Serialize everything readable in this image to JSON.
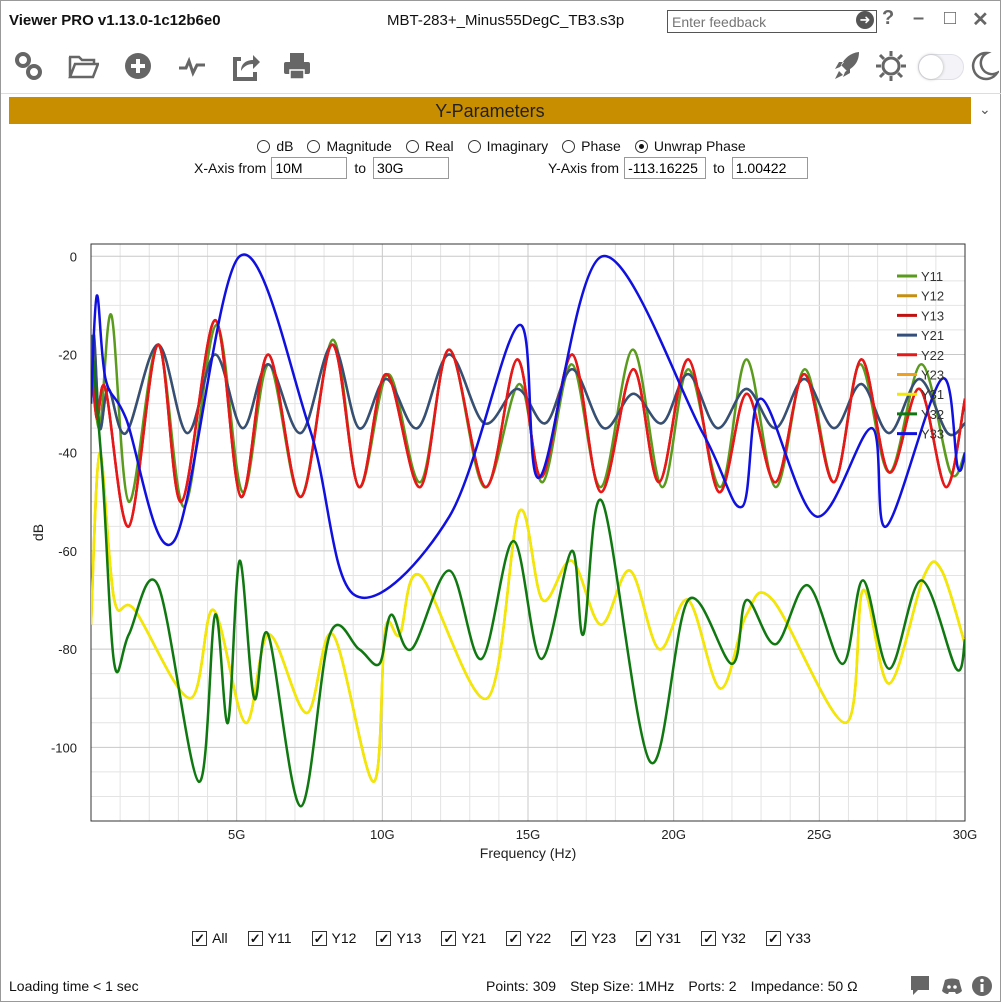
{
  "app": {
    "title": "Viewer PRO v1.13.0-1c12b6e0",
    "file": "MBT-283+_Minus55DegC_TB3.s3p",
    "feedback_placeholder": "Enter feedback"
  },
  "window_controls": {
    "help": "?",
    "minimize": "–",
    "maximize": "□",
    "close": "✕"
  },
  "section": {
    "title": "Y-Parameters"
  },
  "modes": [
    {
      "label": "dB",
      "selected": false
    },
    {
      "label": "Magnitude",
      "selected": false
    },
    {
      "label": "Real",
      "selected": false
    },
    {
      "label": "Imaginary",
      "selected": false
    },
    {
      "label": "Phase",
      "selected": false
    },
    {
      "label": "Unwrap Phase",
      "selected": true
    }
  ],
  "xaxis": {
    "label_from": "X-Axis from",
    "from": "10M",
    "label_to": "to",
    "to": "30G"
  },
  "yaxis": {
    "label_from": "Y-Axis from",
    "from": "-113.16225",
    "label_to": "to",
    "to": "1.00422"
  },
  "checkboxes": [
    {
      "label": "All",
      "checked": true
    },
    {
      "label": "Y11",
      "checked": true
    },
    {
      "label": "Y12",
      "checked": true
    },
    {
      "label": "Y13",
      "checked": true
    },
    {
      "label": "Y21",
      "checked": true
    },
    {
      "label": "Y22",
      "checked": true
    },
    {
      "label": "Y23",
      "checked": true
    },
    {
      "label": "Y31",
      "checked": true
    },
    {
      "label": "Y32",
      "checked": true
    },
    {
      "label": "Y33",
      "checked": true
    }
  ],
  "status": {
    "loading": "Loading time < 1 sec",
    "points": "Points: 309",
    "step": "Step Size: 1MHz",
    "ports": "Ports: 2",
    "impedance": "Impedance: 50 Ω"
  },
  "chart_data": {
    "type": "line",
    "xlabel": "Frequency (Hz)",
    "ylabel": "dB",
    "xlim": [
      0,
      30
    ],
    "ylim": [
      -115,
      2.5
    ],
    "xticks": [
      {
        "v": 5,
        "label": "5G"
      },
      {
        "v": 10,
        "label": "10G"
      },
      {
        "v": 15,
        "label": "15G"
      },
      {
        "v": 20,
        "label": "20G"
      },
      {
        "v": 25,
        "label": "25G"
      },
      {
        "v": 30,
        "label": "30G"
      }
    ],
    "yticks": [
      {
        "v": 0,
        "label": "0"
      },
      {
        "v": -20,
        "label": "-20"
      },
      {
        "v": -40,
        "label": "-40"
      },
      {
        "v": -60,
        "label": "-60"
      },
      {
        "v": -80,
        "label": "-80"
      },
      {
        "v": -100,
        "label": "-100"
      }
    ],
    "legend": "top-right",
    "grid": true,
    "series": [
      {
        "name": "Y11",
        "color": "#5a9a1c",
        "x": [
          0,
          0.3,
          0.7,
          1.3,
          2.3,
          3.2,
          4.3,
          5.2,
          6.1,
          7.2,
          8.3,
          9.2,
          10.2,
          11.3,
          12.3,
          13.5,
          14.7,
          15.5,
          16.5,
          17.5,
          18.6,
          19.6,
          20.5,
          21.6,
          22.5,
          23.5,
          24.5,
          25.5,
          26.4,
          27.4,
          28.5,
          29.5,
          30
        ],
        "y": [
          -20,
          -35,
          -12,
          -50,
          -18,
          -51,
          -14,
          -48,
          -22,
          -49,
          -17,
          -47,
          -24,
          -46,
          -19,
          -47,
          -26,
          -46,
          -22,
          -47,
          -19,
          -47,
          -23,
          -47,
          -21,
          -47,
          -23,
          -46,
          -22,
          -44,
          -22,
          -44,
          -40
        ]
      },
      {
        "name": "Y12",
        "color": "#c58f10",
        "x": [
          0,
          0.1,
          0.3,
          0.6,
          1.2,
          2.3,
          3.3,
          4.26,
          5.2,
          6.08,
          7.2,
          8.28,
          9.2,
          10.13,
          11.2,
          12.29,
          13.5,
          14.63,
          15.6,
          16.52,
          17.6,
          18.61,
          19.6,
          20.5,
          21.5,
          22.5,
          23.5,
          24.48,
          25.5,
          26.44,
          27.4,
          28.43,
          29.4,
          30
        ],
        "y": [
          -30,
          -16,
          -35,
          -27,
          -36,
          -18,
          -36,
          -20,
          -35,
          -22,
          -36,
          -18,
          -35,
          -25,
          -35,
          -20,
          -34,
          -27,
          -34,
          -23,
          -35,
          -28,
          -34,
          -24,
          -35,
          -27,
          -35,
          -25,
          -35,
          -26,
          -36,
          -25,
          -36,
          -34
        ]
      },
      {
        "name": "Y13",
        "color": "#c01010",
        "x": [
          0,
          0.2,
          0.5,
          1.3,
          2.3,
          3.1,
          4.26,
          5.15,
          6.08,
          7.2,
          8.28,
          9.2,
          10.13,
          11.3,
          12.29,
          13.55,
          14.63,
          15.45,
          16.52,
          17.5,
          18.61,
          19.5,
          20.5,
          21.55,
          22.5,
          23.5,
          24.48,
          25.5,
          26.44,
          27.4,
          28.43,
          29.35,
          30
        ],
        "y": [
          -20,
          -33,
          -27,
          -55,
          -18,
          -50,
          -13,
          -49,
          -20,
          -49,
          -18,
          -47,
          -24,
          -47,
          -19,
          -47,
          -21,
          -45,
          -20,
          -48,
          -23,
          -46,
          -21,
          -48,
          -28,
          -46,
          -24,
          -46,
          -21,
          -44,
          -27,
          -47,
          -29
        ]
      },
      {
        "name": "Y21",
        "color": "#34507a",
        "x": [
          0,
          0.1,
          0.3,
          0.6,
          1.2,
          2.3,
          3.3,
          4.26,
          5.2,
          6.08,
          7.2,
          8.28,
          9.2,
          10.13,
          11.2,
          12.29,
          13.5,
          14.63,
          15.6,
          16.52,
          17.6,
          18.61,
          19.6,
          20.5,
          21.5,
          22.5,
          23.5,
          24.48,
          25.5,
          26.44,
          27.4,
          28.43,
          29.4,
          30
        ],
        "y": [
          -30,
          -16,
          -35,
          -27,
          -36,
          -18,
          -36,
          -20,
          -35,
          -22,
          -36,
          -18,
          -35,
          -25,
          -35,
          -20,
          -34,
          -27,
          -34,
          -23,
          -35,
          -28,
          -34,
          -24,
          -35,
          -27,
          -35,
          -25,
          -35,
          -26,
          -36,
          -25,
          -36,
          -34
        ]
      },
      {
        "name": "Y22",
        "color": "#e81818",
        "x": [
          0,
          0.2,
          0.5,
          1.3,
          2.3,
          3.1,
          4.26,
          5.15,
          6.08,
          7.2,
          8.28,
          9.2,
          10.13,
          11.3,
          12.29,
          13.55,
          14.63,
          15.45,
          16.52,
          17.5,
          18.61,
          19.5,
          20.5,
          21.55,
          22.5,
          23.5,
          24.48,
          25.5,
          26.44,
          27.4,
          28.43,
          29.35,
          30
        ],
        "y": [
          -20,
          -33,
          -27,
          -55,
          -18,
          -50,
          -13,
          -49,
          -20,
          -49,
          -18,
          -47,
          -24,
          -47,
          -19,
          -47,
          -21,
          -45,
          -20,
          -48,
          -23,
          -46,
          -21,
          -48,
          -28,
          -46,
          -24,
          -46,
          -21,
          -44,
          -27,
          -47,
          -29
        ]
      },
      {
        "name": "Y23",
        "color": "#f0a020",
        "x": [
          0,
          0.3,
          0.8,
          1.5,
          3.4,
          4.2,
          5.3,
          6.1,
          7.4,
          8.3,
          9.7,
          10.1,
          10.6,
          11.3,
          13.6,
          14.7,
          15.5,
          16.5,
          17.5,
          18.5,
          19.5,
          20.5,
          21.6,
          22.5,
          23.4,
          25.9,
          26.5,
          27.4,
          28.6,
          29.2,
          30
        ],
        "y": [
          -75,
          -40,
          -70,
          -72,
          -90,
          -72,
          -95,
          -77,
          -93,
          -77,
          -107,
          -76,
          -77,
          -65,
          -90,
          -52,
          -70,
          -62,
          -75,
          -64,
          -80,
          -70,
          -88,
          -73,
          -70,
          -95,
          -68,
          -87,
          -65,
          -64,
          -79
        ]
      },
      {
        "name": "Y31",
        "color": "#f2e800",
        "x": [
          0,
          0.3,
          0.8,
          1.5,
          3.4,
          4.2,
          5.3,
          6.1,
          7.4,
          8.3,
          9.7,
          10.1,
          10.6,
          11.3,
          13.6,
          14.7,
          15.5,
          16.5,
          17.5,
          18.5,
          19.5,
          20.5,
          21.6,
          22.5,
          23.4,
          25.9,
          26.5,
          27.4,
          28.6,
          29.2,
          30
        ],
        "y": [
          -75,
          -40,
          -70,
          -72,
          -90,
          -72,
          -95,
          -77,
          -93,
          -77,
          -107,
          -76,
          -77,
          -65,
          -90,
          -52,
          -70,
          -62,
          -75,
          -64,
          -80,
          -70,
          -88,
          -73,
          -70,
          -95,
          -68,
          -87,
          -65,
          -64,
          -79
        ]
      },
      {
        "name": "Y32",
        "color": "#107810",
        "x": [
          0,
          0.4,
          0.8,
          1.3,
          2.3,
          3.7,
          4.26,
          4.7,
          5.1,
          5.6,
          6.08,
          7.2,
          8.2,
          9.2,
          9.9,
          10.3,
          11,
          12.3,
          13.4,
          14.5,
          15.45,
          16.5,
          16.9,
          17.55,
          19.2,
          20.5,
          22,
          22.5,
          23.5,
          24.6,
          25.8,
          26.5,
          27.4,
          28.5,
          29.7,
          30
        ],
        "y": [
          -16,
          -45,
          -83,
          -77,
          -67,
          -107,
          -73,
          -95,
          -62,
          -90,
          -77,
          -112,
          -77,
          -80,
          -83,
          -73,
          -80,
          -64,
          -82,
          -58,
          -82,
          -60,
          -77,
          -50,
          -103,
          -70,
          -83,
          -70,
          -79,
          -67,
          -83,
          -66,
          -84,
          -66,
          -84,
          -78
        ]
      },
      {
        "name": "Y33",
        "color": "#1010e0",
        "x": [
          0,
          0.2,
          0.5,
          1.2,
          2.85,
          5.1,
          7.5,
          9.05,
          12.3,
          14.7,
          15.4,
          17.55,
          21,
          22.35,
          23,
          24.9,
          26.8,
          27.3,
          29.2,
          29.75,
          30
        ],
        "y": [
          -30,
          -8,
          -25,
          -33,
          -58,
          0,
          -35,
          -69,
          -53,
          -14,
          -45,
          0,
          -36,
          -51,
          -29,
          -53,
          -35,
          -55,
          -25,
          -43,
          -40
        ]
      }
    ]
  }
}
